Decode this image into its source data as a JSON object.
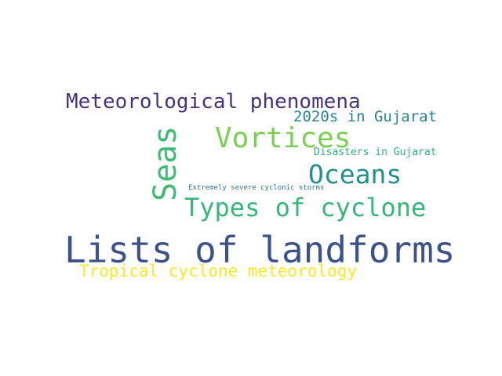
{
  "word_cloud": {
    "words": [
      {
        "id": "lists",
        "text": "Lists of landforms",
        "color": "#3b528b"
      },
      {
        "id": "meteo",
        "text": "Meteorological phenomena",
        "color": "#46337e"
      },
      {
        "id": "seas",
        "text": "Seas",
        "color": "#3fbc73"
      },
      {
        "id": "vortices",
        "text": "Vortices",
        "color": "#7ad151"
      },
      {
        "id": "types",
        "text": "Types of cyclone",
        "color": "#35b779"
      },
      {
        "id": "oceans",
        "text": "Oceans",
        "color": "#21918c"
      },
      {
        "id": "2020s",
        "text": "2020s in Gujarat",
        "color": "#26828e"
      },
      {
        "id": "disasters",
        "text": "Disasters in Gujarat",
        "color": "#2db27d"
      },
      {
        "id": "extreme",
        "text": "Extremely severe cyclonic storms",
        "color": "#2a788e"
      },
      {
        "id": "tropical",
        "text": "Tropical cyclone meteorology",
        "color": "#fde725"
      }
    ]
  }
}
